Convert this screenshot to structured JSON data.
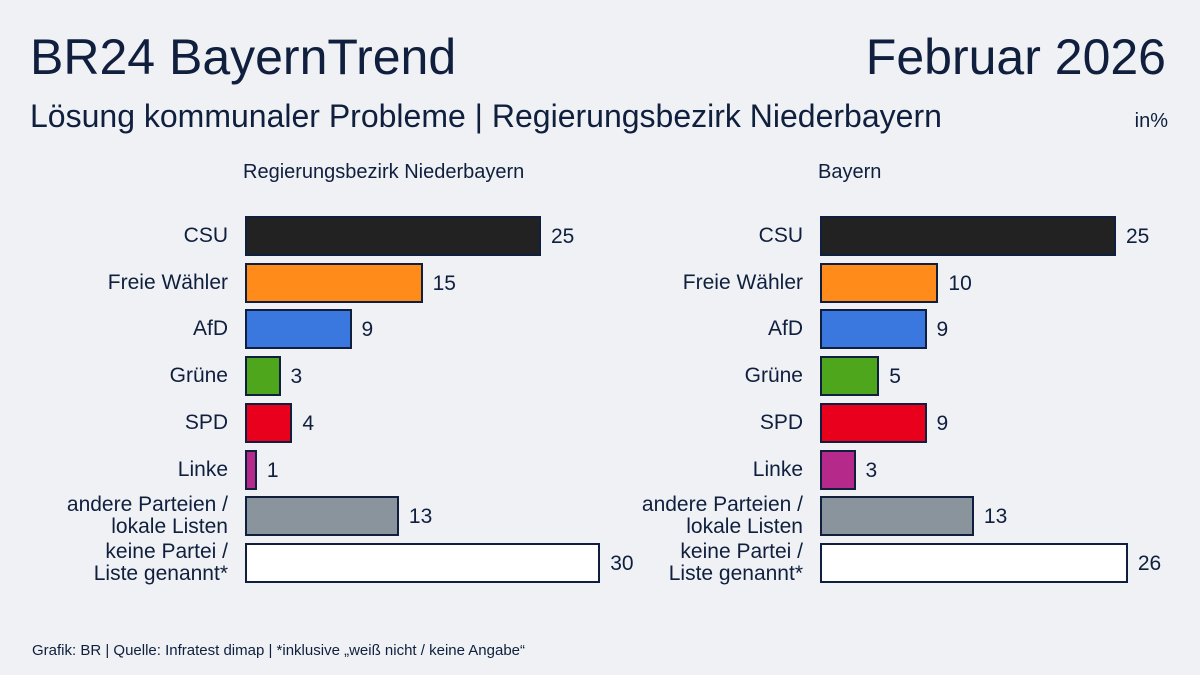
{
  "title": "BR24 BayernTrend",
  "date": "Februar 2026",
  "subtitle": "Lösung kommunaler Probleme | Regierungsbezirk Niederbayern",
  "unit": "in%",
  "source": "Grafik: BR | Quelle: Infratest dimap | *inklusive „weiß nicht / keine Angabe“",
  "chart_data": [
    {
      "type": "bar",
      "orientation": "horizontal",
      "title": "Regierungsbezirk Niederbayern",
      "categories": [
        "CSU",
        "Freie Wähler",
        "AfD",
        "Grüne",
        "SPD",
        "Linke",
        "andere Parteien /\nlokale Listen",
        "keine Partei /\nListe genannt*"
      ],
      "values": [
        25,
        15,
        9,
        3,
        4,
        1,
        13,
        30
      ],
      "colors": [
        "#222222",
        "#ff8c1a",
        "#3a78e0",
        "#4da61c",
        "#e8001c",
        "#b5298a",
        "#8a949c",
        "#ffffff"
      ]
    },
    {
      "type": "bar",
      "orientation": "horizontal",
      "title": "Bayern",
      "categories": [
        "CSU",
        "Freie Wähler",
        "AfD",
        "Grüne",
        "SPD",
        "Linke",
        "andere Parteien /\nlokale Listen",
        "keine Partei /\nListe genannt*"
      ],
      "values": [
        25,
        10,
        9,
        5,
        9,
        3,
        13,
        26
      ],
      "colors": [
        "#222222",
        "#ff8c1a",
        "#3a78e0",
        "#4da61c",
        "#e8001c",
        "#b5298a",
        "#8a949c",
        "#ffffff"
      ]
    }
  ]
}
